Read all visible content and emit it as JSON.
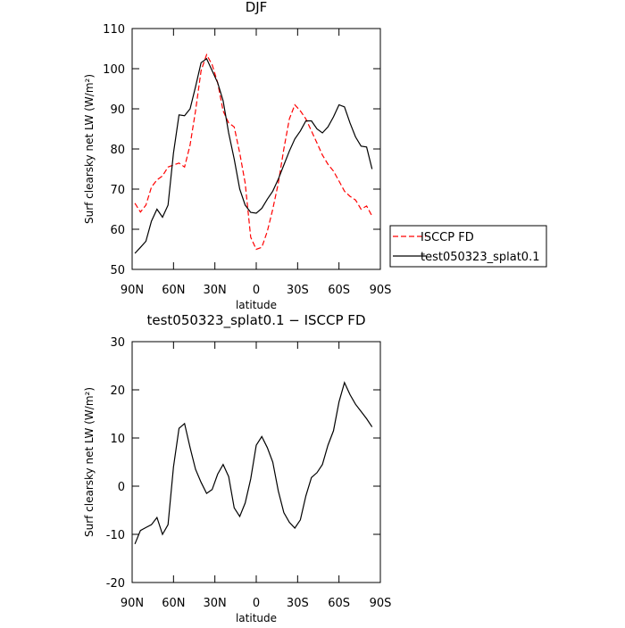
{
  "chart_data": [
    {
      "type": "line",
      "title": "DJF",
      "xlabel": "latitude",
      "ylabel": "Surf clearsky net LW (W/m²)",
      "x": [
        88,
        84,
        80,
        76,
        72,
        68,
        64,
        60,
        56,
        52,
        48,
        44,
        40,
        36,
        32,
        28,
        24,
        20,
        16,
        12,
        8,
        4,
        0,
        -4,
        -8,
        -12,
        -16,
        -20,
        -24,
        -28,
        -32,
        -36,
        -40,
        -44,
        -48,
        -52,
        -56,
        -60,
        -64,
        -68,
        -72,
        -76,
        -80,
        -84
      ],
      "xlim": [
        90,
        -90
      ],
      "xticks": [
        {
          "value": 90,
          "label": "90N"
        },
        {
          "value": 60,
          "label": "60N"
        },
        {
          "value": 30,
          "label": "30N"
        },
        0,
        {
          "value": -30,
          "label": "30S"
        },
        {
          "value": -60,
          "label": "60S"
        },
        {
          "value": -90,
          "label": "90S"
        }
      ],
      "ylim": [
        50,
        110
      ],
      "yticks": [
        50,
        60,
        70,
        80,
        90,
        100,
        110
      ],
      "legend": "right",
      "series": [
        {
          "name": "ISCCP FD",
          "color": "#ff0000",
          "dashed": true,
          "values": [
            66.5,
            64.3,
            66,
            70.5,
            72.3,
            73.3,
            75.5,
            76,
            76.5,
            75.5,
            81,
            89.5,
            99.5,
            103.5,
            101,
            96.5,
            89.5,
            86.5,
            85.5,
            79,
            71.5,
            58,
            55,
            55.5,
            59.5,
            65,
            71.5,
            80,
            87.5,
            91,
            89.5,
            87.5,
            84.5,
            81.5,
            78.5,
            76.2,
            74.5,
            72,
            69.5,
            68.2,
            67.3,
            65,
            65.8,
            63.3
          ]
        },
        {
          "name": "test050323_splat0.1",
          "color": "#000000",
          "dashed": false,
          "values": [
            54,
            55.5,
            57,
            62,
            65,
            63,
            66,
            79,
            88.5,
            88.3,
            90,
            95.5,
            101.5,
            102.5,
            99.5,
            96.5,
            92,
            84,
            77.5,
            70,
            66,
            64.2,
            64,
            65.2,
            67.5,
            69.5,
            72.5,
            76,
            79.5,
            82.5,
            84.5,
            87,
            87,
            85,
            84,
            85.5,
            88,
            91,
            90.5,
            86.5,
            83,
            80.7,
            80.5,
            75
          ]
        }
      ]
    },
    {
      "type": "line",
      "title": "test050323_splat0.1 − ISCCP FD",
      "xlabel": "latitude",
      "ylabel": "Surf clearsky net LW (W/m²)",
      "x": [
        88,
        84,
        80,
        76,
        72,
        68,
        64,
        60,
        56,
        52,
        48,
        44,
        40,
        36,
        32,
        28,
        24,
        20,
        16,
        12,
        8,
        4,
        0,
        -4,
        -8,
        -12,
        -16,
        -20,
        -24,
        -28,
        -32,
        -36,
        -40,
        -44,
        -48,
        -52,
        -56,
        -60,
        -64,
        -68,
        -72,
        -76,
        -80,
        -84
      ],
      "xlim": [
        90,
        -90
      ],
      "xticks": [
        {
          "value": 90,
          "label": "90N"
        },
        {
          "value": 60,
          "label": "60N"
        },
        {
          "value": 30,
          "label": "30N"
        },
        0,
        {
          "value": -30,
          "label": "30S"
        },
        {
          "value": -60,
          "label": "60S"
        },
        {
          "value": -90,
          "label": "90S"
        }
      ],
      "ylim": [
        -20,
        30
      ],
      "yticks": [
        -20,
        -10,
        0,
        10,
        20,
        30
      ],
      "series": [
        {
          "color": "#000000",
          "dashed": false,
          "values": [
            -12,
            -9.2,
            -8.6,
            -8,
            -6.5,
            -10,
            -8,
            4,
            12,
            13,
            8,
            3.5,
            0.8,
            -1.5,
            -0.7,
            2.5,
            4.5,
            2,
            -4.5,
            -6.3,
            -3.5,
            1.5,
            8.5,
            10.3,
            8,
            5,
            -1,
            -5.5,
            -7.5,
            -8.7,
            -7,
            -2,
            1.8,
            2.8,
            4.5,
            8.5,
            11.5,
            17.5,
            21.5,
            19,
            17,
            15.5,
            14,
            12.3
          ]
        }
      ]
    }
  ]
}
